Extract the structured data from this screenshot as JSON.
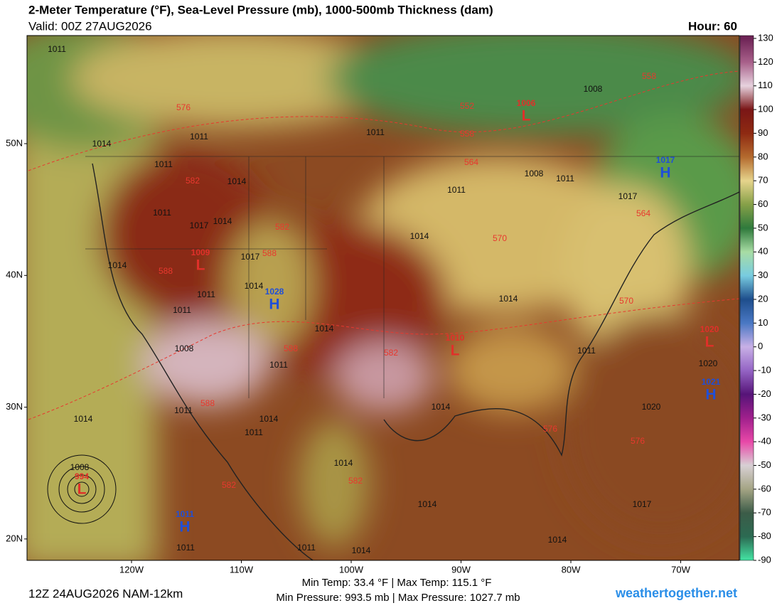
{
  "header": {
    "title": "2-Meter Temperature (°F), Sea-Level Pressure (mb), 1000-500mb Thickness (dam)",
    "valid": "Valid: 00Z 27AUG2026",
    "hour": "Hour: 60"
  },
  "colorbar": {
    "range": [
      -90,
      130
    ],
    "ticks": [
      130,
      120,
      110,
      100,
      90,
      80,
      70,
      60,
      50,
      40,
      30,
      20,
      10,
      0,
      -10,
      -20,
      -30,
      -40,
      -50,
      -60,
      -70,
      -80,
      -90
    ],
    "colors": [
      "#6e2456",
      "#a8608a",
      "#e6d2de",
      "#7a1616",
      "#8e2a12",
      "#b46a2e",
      "#e6d48c",
      "#86a048",
      "#2f7a3c",
      "#a8dca4",
      "#78cce0",
      "#1e4e8c",
      "#4a78c4",
      "#c8b0e6",
      "#9464c4",
      "#561478",
      "#a0208c",
      "#e848a8",
      "#d8d0d4",
      "#a4a484",
      "#3c5c48",
      "#2c6a52",
      "#44e4a4"
    ]
  },
  "lat_ticks": [
    {
      "value": 50,
      "label": "50N"
    },
    {
      "value": 40,
      "label": "40N"
    },
    {
      "value": 30,
      "label": "30N"
    },
    {
      "value": 20,
      "label": "20N"
    }
  ],
  "lon_ticks": [
    {
      "value": -120,
      "label": "120W"
    },
    {
      "value": -110,
      "label": "110W"
    },
    {
      "value": -100,
      "label": "100W"
    },
    {
      "value": -90,
      "label": "90W"
    },
    {
      "value": -80,
      "label": "80W"
    },
    {
      "value": -70,
      "label": "70W"
    }
  ],
  "centers": [
    {
      "letter": "L",
      "value": 1006
    },
    {
      "letter": "H",
      "value": 1017
    },
    {
      "letter": "L",
      "value": 1009
    },
    {
      "letter": "H",
      "value": 1028
    },
    {
      "letter": "L",
      "value": 1010
    },
    {
      "letter": "L",
      "value": 1020
    },
    {
      "letter": "H",
      "value": 1021
    },
    {
      "letter": "L",
      "value": 994
    },
    {
      "letter": "H",
      "value": 1011
    }
  ],
  "isobar_labels": [
    1011,
    1014,
    1011,
    1011,
    1014,
    1017,
    1014,
    1011,
    1017,
    1014,
    1011,
    1011,
    1014,
    1008,
    1014,
    1011,
    1014,
    1011,
    1011,
    1014,
    1014,
    1008,
    1011,
    1014,
    1011,
    1014,
    1014,
    1014,
    1014,
    1011,
    1008,
    1011,
    1008,
    1017,
    1011,
    1020,
    1020,
    1017,
    1014,
    1011
  ],
  "thickness_labels": [
    576,
    558,
    552,
    558,
    564,
    564,
    582,
    582,
    588,
    588,
    570,
    570,
    582,
    588,
    588,
    576,
    576,
    582,
    582
  ],
  "footer": {
    "temps": "Min Temp:  33.4 °F | Max Temp: 115.1 °F",
    "pressures": "Min Pressure: 993.5 mb | Max Pressure: 1027.7 mb",
    "run": "12Z 24AUG2026 NAM-12km",
    "site": "weathertogether.net"
  }
}
